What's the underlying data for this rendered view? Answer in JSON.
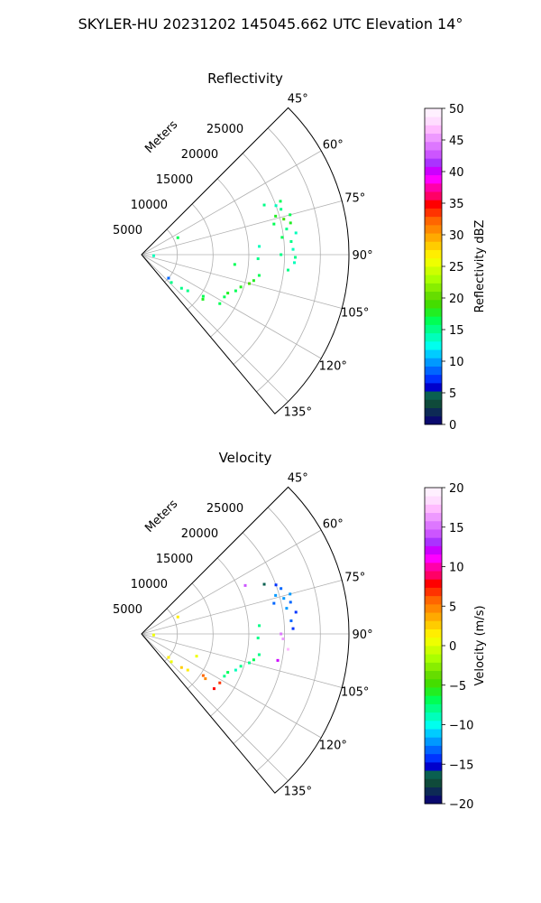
{
  "figure": {
    "suptitle": "SKYLER-HU  20231202  145045.662 UTC Elevation 14°",
    "radial_unit_label": "Meters"
  },
  "chart_data": [
    {
      "type": "scatter",
      "projection": "polar-sector",
      "title": "Reflectivity",
      "theta_range_deg": [
        45,
        140
      ],
      "r_range_m": [
        0,
        29000
      ],
      "r_ticks": [
        5000,
        10000,
        15000,
        20000,
        25000
      ],
      "r_tick_labels": [
        "5000",
        "10000",
        "15000",
        "20000",
        "25000"
      ],
      "theta_ticks_deg": [
        45,
        60,
        75,
        90,
        105,
        120,
        135
      ],
      "theta_tick_labels": [
        "45°",
        "60°",
        "75°",
        "90°",
        "105°",
        "120°",
        "135°"
      ],
      "grid": true,
      "colorbar": {
        "label": "Reflectivity dBZ",
        "vmin": 0,
        "vmax": 50,
        "ticks": [
          0,
          5,
          10,
          15,
          20,
          25,
          30,
          35,
          40,
          45,
          50
        ],
        "tick_labels": [
          "0",
          "5",
          "10",
          "15",
          "20",
          "25",
          "30",
          "35",
          "40",
          "45",
          "50"
        ],
        "colors": [
          "#0a0a6e",
          "#0d2a55",
          "#0f4a3a",
          "#0a6050",
          "#0000cc",
          "#0033ff",
          "#0066ff",
          "#0099ff",
          "#00ccff",
          "#00ffee",
          "#00ffbb",
          "#00ff88",
          "#00ff55",
          "#22ee22",
          "#44dd00",
          "#66dd00",
          "#88ee00",
          "#aaff00",
          "#ccff00",
          "#eeff00",
          "#ffee00",
          "#ffcc00",
          "#ffaa00",
          "#ff8800",
          "#ff6600",
          "#ff3300",
          "#ff0000",
          "#ff0066",
          "#ff00aa",
          "#ff00ff",
          "#cc00ff",
          "#aa33ff",
          "#cc55ff",
          "#dd77ff",
          "#ee99ff",
          "#ffbbff",
          "#ffddff",
          "#fff0ff"
        ]
      },
      "gates": [
        {
          "theta": 68,
          "r": 18500,
          "value": 15
        },
        {
          "theta": 70,
          "r": 20000,
          "value": 14
        },
        {
          "theta": 69,
          "r": 20800,
          "value": 16
        },
        {
          "theta": 72,
          "r": 20500,
          "value": 15
        },
        {
          "theta": 74,
          "r": 19500,
          "value": 18
        },
        {
          "theta": 76,
          "r": 20500,
          "value": 19
        },
        {
          "theta": 77,
          "r": 19000,
          "value": 17
        },
        {
          "theta": 75,
          "r": 21500,
          "value": 16
        },
        {
          "theta": 78,
          "r": 21300,
          "value": 18
        },
        {
          "theta": 80,
          "r": 20600,
          "value": 15
        },
        {
          "theta": 82,
          "r": 21800,
          "value": 14
        },
        {
          "theta": 83,
          "r": 19800,
          "value": 16
        },
        {
          "theta": 85,
          "r": 21000,
          "value": 15
        },
        {
          "theta": 88,
          "r": 21200,
          "value": 14
        },
        {
          "theta": 91,
          "r": 21500,
          "value": 15
        },
        {
          "theta": 93,
          "r": 21400,
          "value": 14
        },
        {
          "theta": 90,
          "r": 19500,
          "value": 15
        },
        {
          "theta": 96,
          "r": 20600,
          "value": 15
        },
        {
          "theta": 86,
          "r": 16500,
          "value": 14
        },
        {
          "theta": 92,
          "r": 16300,
          "value": 15
        },
        {
          "theta": 100,
          "r": 16700,
          "value": 17
        },
        {
          "theta": 103,
          "r": 16100,
          "value": 18
        },
        {
          "theta": 105,
          "r": 15600,
          "value": 19
        },
        {
          "theta": 108,
          "r": 14600,
          "value": 18
        },
        {
          "theta": 111,
          "r": 14100,
          "value": 17
        },
        {
          "theta": 114,
          "r": 13200,
          "value": 18
        },
        {
          "theta": 117,
          "r": 13000,
          "value": 17
        },
        {
          "theta": 122,
          "r": 12900,
          "value": 16
        },
        {
          "theta": 124,
          "r": 10400,
          "value": 16
        },
        {
          "theta": 126,
          "r": 10600,
          "value": 18
        },
        {
          "theta": 128,
          "r": 8200,
          "value": 15
        },
        {
          "theta": 130,
          "r": 7300,
          "value": 15
        },
        {
          "theta": 131,
          "r": 5000,
          "value": 8
        },
        {
          "theta": 133,
          "r": 5700,
          "value": 15
        },
        {
          "theta": 65,
          "r": 5600,
          "value": 16
        },
        {
          "theta": 95,
          "r": 1700,
          "value": 14
        },
        {
          "theta": 96,
          "r": 13100,
          "value": 16
        }
      ]
    },
    {
      "type": "scatter",
      "projection": "polar-sector",
      "title": "Velocity",
      "theta_range_deg": [
        45,
        140
      ],
      "r_range_m": [
        0,
        29000
      ],
      "r_ticks": [
        5000,
        10000,
        15000,
        20000,
        25000
      ],
      "r_tick_labels": [
        "5000",
        "10000",
        "15000",
        "20000",
        "25000"
      ],
      "theta_ticks_deg": [
        45,
        60,
        75,
        90,
        105,
        120,
        135
      ],
      "theta_tick_labels": [
        "45°",
        "60°",
        "75°",
        "90°",
        "105°",
        "120°",
        "135°"
      ],
      "grid": true,
      "colorbar": {
        "label": "Velocity (m/s)",
        "vmin": -20,
        "vmax": 20,
        "ticks": [
          -20,
          -15,
          -10,
          -5,
          0,
          5,
          10,
          15,
          20
        ],
        "tick_labels": [
          "−20",
          "−15",
          "−10",
          "−5",
          "0",
          "5",
          "10",
          "15",
          "20"
        ],
        "colors": [
          "#0a0a6e",
          "#0d2a55",
          "#0f4a3a",
          "#0a6050",
          "#0000cc",
          "#0033ff",
          "#0066ff",
          "#0099ff",
          "#00ccff",
          "#00ffee",
          "#00ffbb",
          "#00ff88",
          "#00ff55",
          "#22ee22",
          "#44dd00",
          "#66dd00",
          "#88ee00",
          "#aaff00",
          "#ccff00",
          "#eeff00",
          "#ffee00",
          "#ffcc00",
          "#ffaa00",
          "#ff8800",
          "#ff6600",
          "#ff3300",
          "#ff0000",
          "#ff0066",
          "#ff00aa",
          "#ff00ff",
          "#cc00ff",
          "#aa33ff",
          "#cc55ff",
          "#dd77ff",
          "#ee99ff",
          "#ffbbff",
          "#ffddff",
          "#fff0ff"
        ]
      },
      "gates": [
        {
          "theta": 68,
          "r": 18500,
          "value": -16
        },
        {
          "theta": 65,
          "r": 16000,
          "value": 14
        },
        {
          "theta": 70,
          "r": 20000,
          "value": -14
        },
        {
          "theta": 72,
          "r": 20500,
          "value": -13
        },
        {
          "theta": 74,
          "r": 19500,
          "value": -12
        },
        {
          "theta": 76,
          "r": 20500,
          "value": -12
        },
        {
          "theta": 77,
          "r": 19000,
          "value": -13
        },
        {
          "theta": 75,
          "r": 21500,
          "value": -12
        },
        {
          "theta": 78,
          "r": 21300,
          "value": -13
        },
        {
          "theta": 80,
          "r": 20600,
          "value": -12
        },
        {
          "theta": 82,
          "r": 21800,
          "value": -14
        },
        {
          "theta": 85,
          "r": 21000,
          "value": -13
        },
        {
          "theta": 88,
          "r": 21200,
          "value": -14
        },
        {
          "theta": 90,
          "r": 19500,
          "value": 15
        },
        {
          "theta": 92,
          "r": 19800,
          "value": 16
        },
        {
          "theta": 96,
          "r": 20600,
          "value": 17
        },
        {
          "theta": 101,
          "r": 19400,
          "value": 12
        },
        {
          "theta": 86,
          "r": 16500,
          "value": -8
        },
        {
          "theta": 92,
          "r": 16300,
          "value": -8
        },
        {
          "theta": 100,
          "r": 16700,
          "value": -8
        },
        {
          "theta": 103,
          "r": 16100,
          "value": -7
        },
        {
          "theta": 105,
          "r": 15600,
          "value": -8
        },
        {
          "theta": 108,
          "r": 14600,
          "value": -8
        },
        {
          "theta": 111,
          "r": 14100,
          "value": -9
        },
        {
          "theta": 114,
          "r": 13200,
          "value": -7
        },
        {
          "theta": 117,
          "r": 13000,
          "value": -8
        },
        {
          "theta": 122,
          "r": 12900,
          "value": 7
        },
        {
          "theta": 124,
          "r": 10400,
          "value": 6
        },
        {
          "theta": 125,
          "r": 10900,
          "value": 5
        },
        {
          "theta": 127,
          "r": 12700,
          "value": 8
        },
        {
          "theta": 128,
          "r": 8200,
          "value": 2
        },
        {
          "theta": 130,
          "r": 7300,
          "value": 3
        },
        {
          "theta": 112,
          "r": 8300,
          "value": 1
        },
        {
          "theta": 131,
          "r": 5000,
          "value": 2
        },
        {
          "theta": 133,
          "r": 5700,
          "value": 1
        },
        {
          "theta": 65,
          "r": 5600,
          "value": 2
        },
        {
          "theta": 95,
          "r": 1700,
          "value": 1
        }
      ]
    }
  ]
}
